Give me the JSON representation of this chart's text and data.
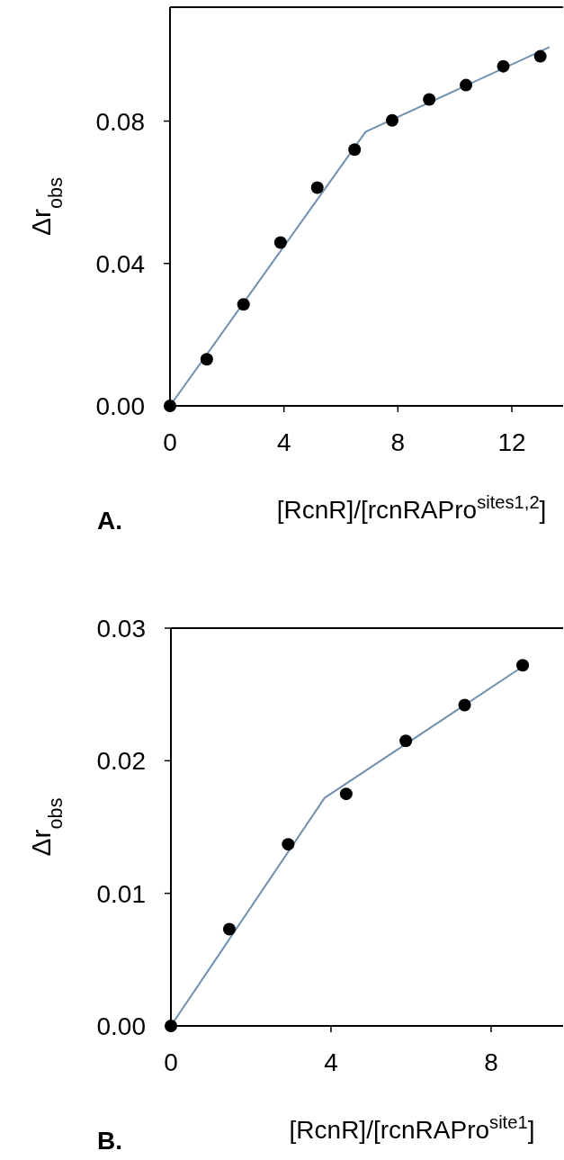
{
  "chart_data": [
    {
      "type": "scatter",
      "xlabel": "[RcnR]/[rcnRAPro$^{sites1,2}$]",
      "ylabel": "Δr$_{obs}$",
      "annotations": [
        "A."
      ],
      "xlim": [
        0,
        13.8
      ],
      "ylim": [
        0,
        0.112
      ],
      "xticks": [
        0,
        4,
        8,
        12
      ],
      "yticks": [
        {
          "value": 0,
          "label": "0.00"
        },
        {
          "value": 0.04,
          "label": "0.04"
        },
        {
          "value": 0.08,
          "label": "0.08"
        }
      ],
      "series": [
        {
          "color": "#000000",
          "marker": "circle",
          "x": [
            0,
            1.29,
            2.58,
            3.88,
            5.17,
            6.48,
            7.8,
            9.1,
            10.39,
            11.7,
            13.0
          ],
          "values": [
            0,
            0.0131,
            0.0285,
            0.0459,
            0.0613,
            0.072,
            0.0802,
            0.0861,
            0.0901,
            0.0954,
            0.0982
          ]
        },
        {
          "type": "line",
          "color": "#7090b0",
          "x": [
            0,
            6.87,
            13.3
          ],
          "values": [
            0,
            0.077,
            0.1007
          ]
        }
      ]
    },
    {
      "type": "scatter",
      "xlabel": "[RcnR]/[rcnRAPro$^{site1}$]",
      "ylabel": "Δr$_{obs}$",
      "annotations": [
        "B."
      ],
      "xlim": [
        0,
        9.8
      ],
      "ylim": [
        0,
        0.03
      ],
      "xticks": [
        0,
        4,
        8
      ],
      "yticks": [
        {
          "value": 0,
          "label": "0.00"
        },
        {
          "value": 0.01,
          "label": "0.01"
        },
        {
          "value": 0.02,
          "label": "0.02"
        },
        {
          "value": 0.03,
          "label": "0.03"
        }
      ],
      "series": [
        {
          "color": "#000000",
          "marker": "circle",
          "x": [
            0,
            1.46,
            2.93,
            4.38,
            5.87,
            7.34,
            8.79
          ],
          "values": [
            0,
            0.0073,
            0.0137,
            0.0175,
            0.0215,
            0.0242,
            0.0272
          ]
        },
        {
          "type": "line",
          "color": "#7090b0",
          "x": [
            0,
            3.84,
            8.79
          ],
          "values": [
            0,
            0.0172,
            0.0271
          ]
        }
      ]
    }
  ]
}
